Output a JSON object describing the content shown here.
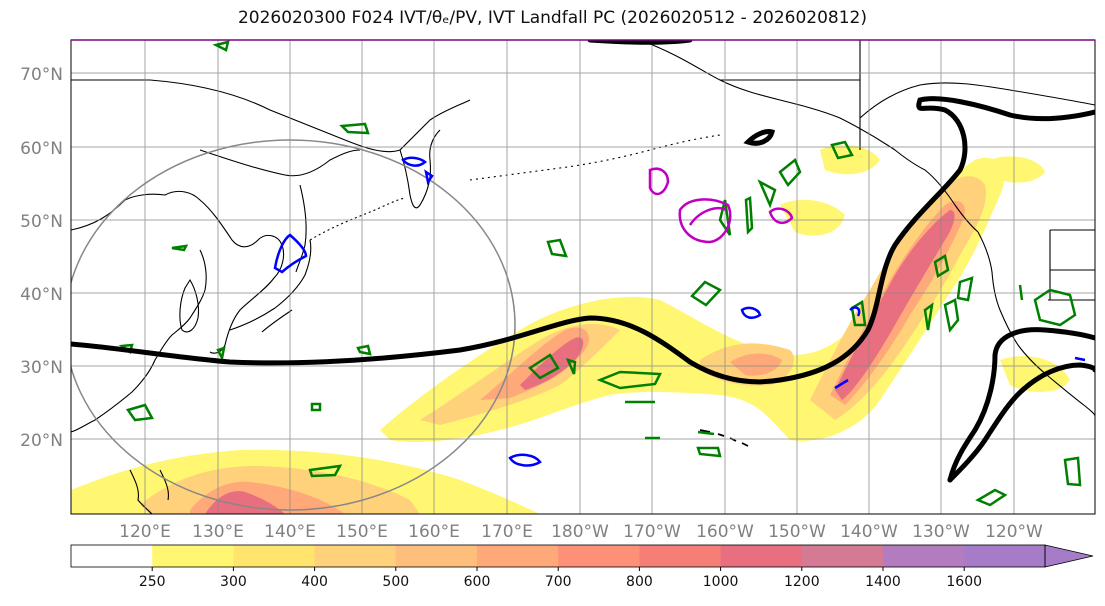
{
  "title": "2026020300 F024 IVT/θₑ/PV, IVT Landfall PC (2026020512 - 2026020812)",
  "map": {
    "lat_labels": [
      "70°N",
      "60°N",
      "50°N",
      "40°N",
      "30°N",
      "20°N"
    ],
    "lon_labels": [
      "120°E",
      "130°E",
      "140°E",
      "150°E",
      "160°E",
      "170°E",
      "180°W",
      "170°W",
      "160°W",
      "150°W",
      "140°W",
      "130°W",
      "120°W"
    ]
  },
  "colorbar": {
    "ticks": [
      "250",
      "300",
      "400",
      "500",
      "600",
      "700",
      "800",
      "1000",
      "1200",
      "1400",
      "1600"
    ],
    "colors": [
      "#ffffff",
      "#fff772",
      "#ffe46e",
      "#ffd17a",
      "#ffbf7c",
      "#ffa87a",
      "#ff9078",
      "#f57f77",
      "#e86f80",
      "#d47a95",
      "#b27cbf",
      "#a67cc8"
    ]
  },
  "colors": {
    "contour_black": "#000000",
    "contour_green": "#008000",
    "contour_blue": "#0000ff",
    "contour_magenta": "#c000c0",
    "grid": "#888888",
    "coast": "#000000"
  }
}
